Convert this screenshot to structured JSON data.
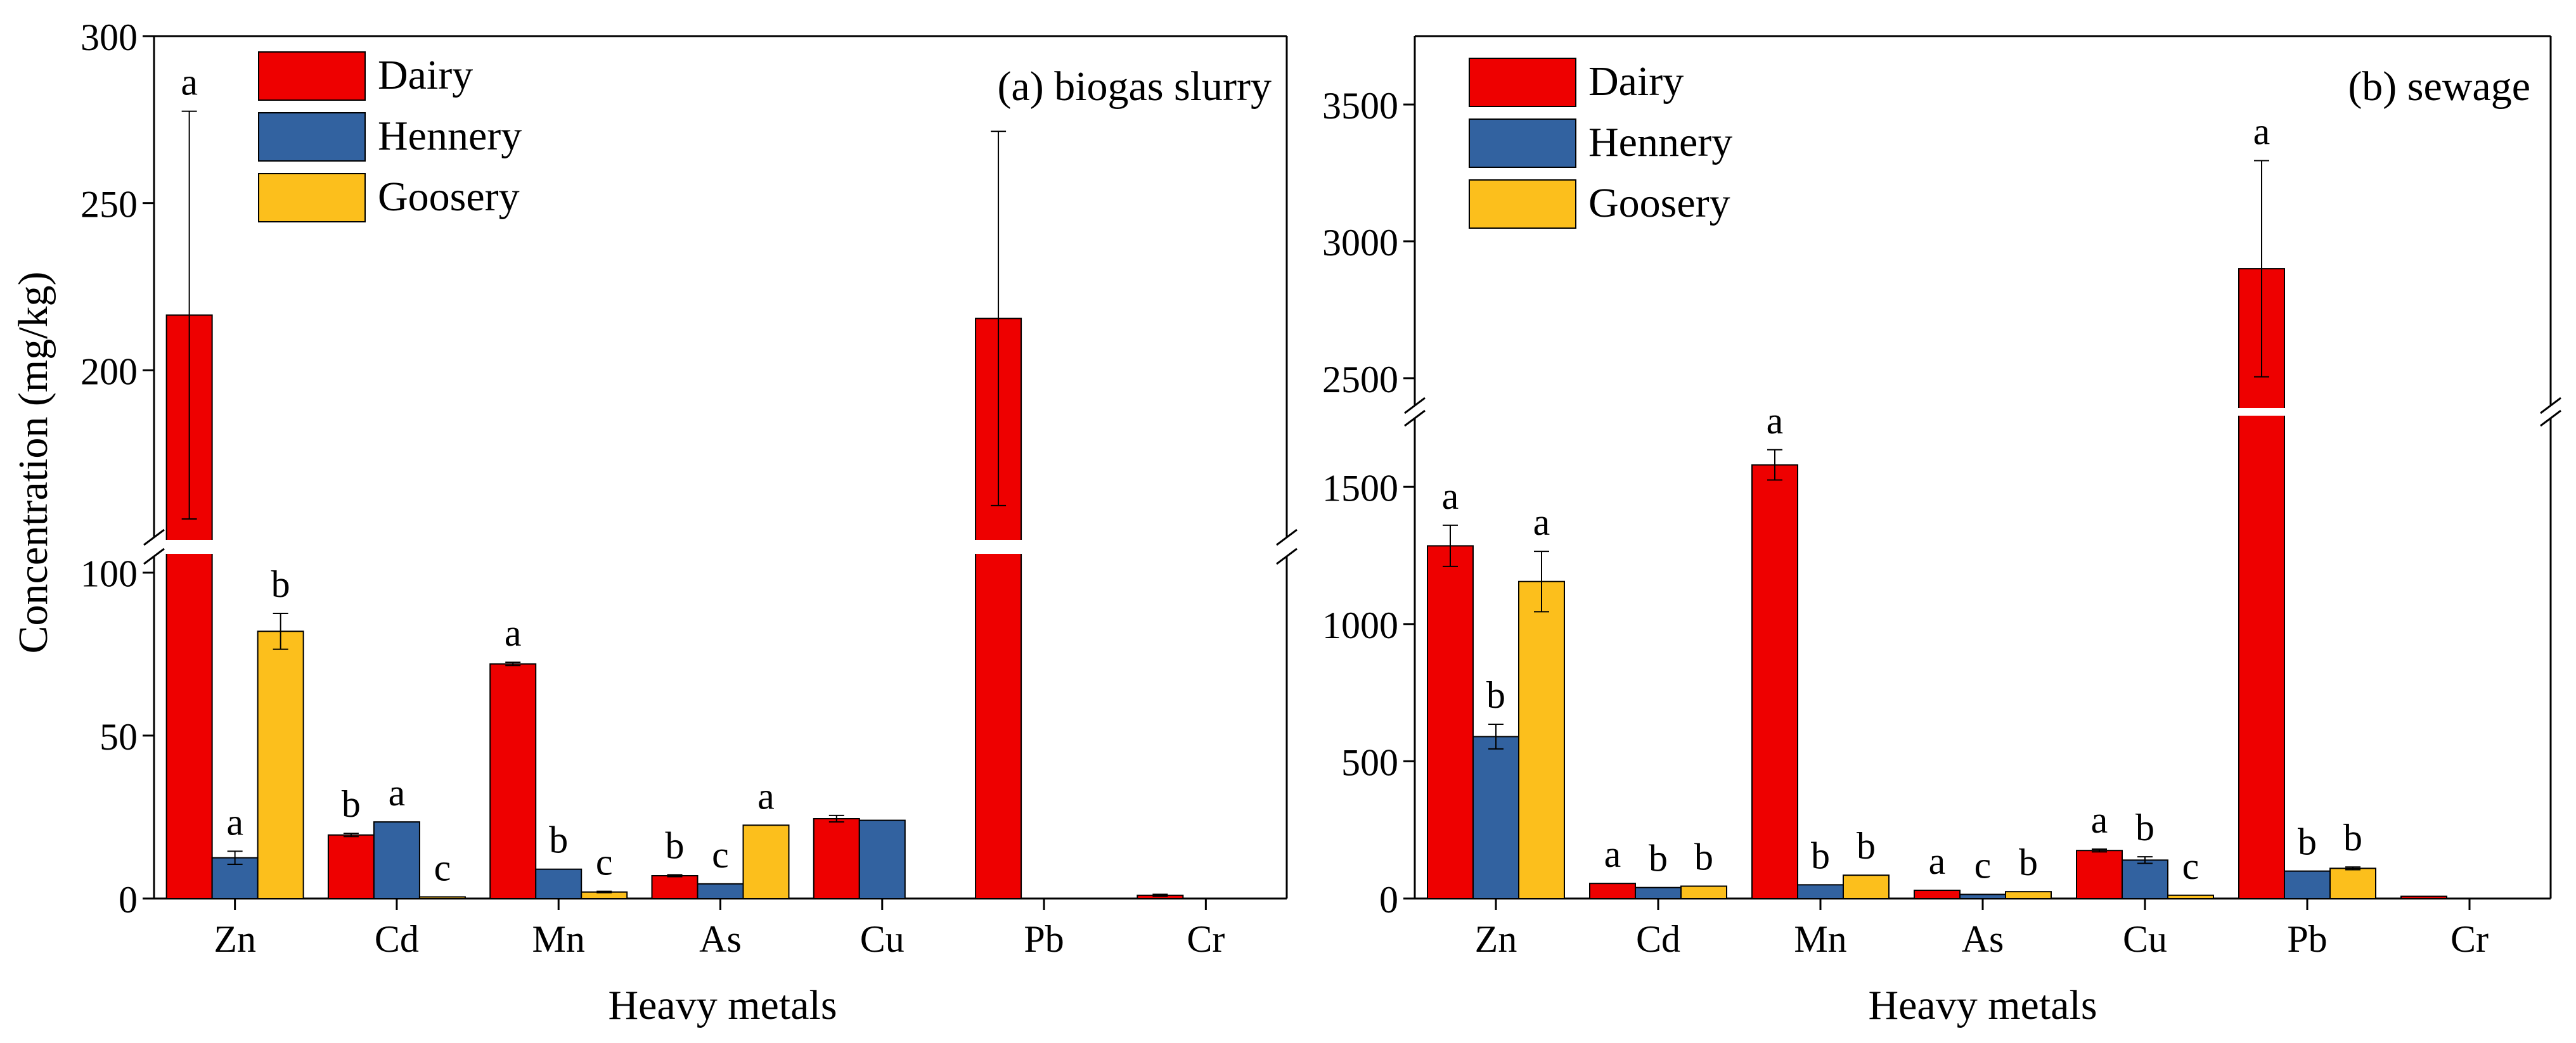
{
  "figure": {
    "ylabel": "Concentration (mg/kg)",
    "colors": {
      "Dairy": "#ee0000",
      "Hennery": "#3262a0",
      "Goosery": "#fcbf1c"
    }
  },
  "chart_data": [
    {
      "type": "bar",
      "panel_label": "(a) biogas slurry",
      "xlabel": "Heavy metals",
      "ylabel": "Concentration (mg/kg)",
      "axis_break": {
        "lower_range": [
          0,
          105
        ],
        "upper_range": [
          150,
          300
        ]
      },
      "yticks_lower": [
        0,
        50,
        100
      ],
      "yticks_upper": [
        200,
        250,
        300
      ],
      "categories": [
        "Zn",
        "Cd",
        "Mn",
        "As",
        "Cu",
        "Pb",
        "Cr"
      ],
      "legend": [
        "Dairy",
        "Hennery",
        "Goosery"
      ],
      "series": [
        {
          "name": "Dairy",
          "values": [
            216.5,
            19.5,
            72,
            7,
            24.5,
            215.5,
            1
          ],
          "errors": [
            61,
            0.5,
            0.5,
            0.3,
            1,
            56,
            0.3
          ],
          "letters": [
            "a",
            "b",
            "a",
            "b",
            "",
            "",
            ""
          ]
        },
        {
          "name": "Hennery",
          "values": [
            12.5,
            23.5,
            9,
            4.5,
            24,
            0,
            0
          ],
          "errors": [
            2,
            0,
            0,
            0,
            0,
            0,
            0
          ],
          "letters": [
            "a",
            "a",
            "b",
            "c",
            "",
            "",
            ""
          ]
        },
        {
          "name": "Goosery",
          "values": [
            82,
            0.5,
            2,
            22.5,
            0,
            0,
            0
          ],
          "errors": [
            5.5,
            0,
            0.2,
            0,
            0,
            0,
            0
          ],
          "letters": [
            "b",
            "c",
            "c",
            "a",
            "",
            "",
            ""
          ]
        }
      ]
    },
    {
      "type": "bar",
      "panel_label": "(b) sewage",
      "xlabel": "Heavy metals",
      "axis_break": {
        "lower_range": [
          0,
          1750
        ],
        "upper_range": [
          2400,
          3750
        ]
      },
      "yticks_lower": [
        0,
        500,
        1000,
        1500
      ],
      "yticks_upper": [
        2500,
        3000,
        3500
      ],
      "categories": [
        "Zn",
        "Cd",
        "Mn",
        "As",
        "Cu",
        "Pb",
        "Cr"
      ],
      "legend": [
        "Dairy",
        "Hennery",
        "Goosery"
      ],
      "series": [
        {
          "name": "Dairy",
          "values": [
            1285,
            55,
            1580,
            30,
            175,
            2900,
            8
          ],
          "errors": [
            75,
            0,
            55,
            0,
            5,
            395,
            0
          ],
          "letters": [
            "a",
            "a",
            "a",
            "a",
            "a",
            "a",
            ""
          ]
        },
        {
          "name": "Hennery",
          "values": [
            590,
            40,
            50,
            15,
            140,
            100,
            0
          ],
          "errors": [
            45,
            0,
            0,
            0,
            12,
            0,
            0
          ],
          "letters": [
            "b",
            "b",
            "b",
            "c",
            "b",
            "b",
            ""
          ]
        },
        {
          "name": "Goosery",
          "values": [
            1155,
            45,
            85,
            25,
            12,
            110,
            0
          ],
          "errors": [
            110,
            0,
            0,
            0,
            0,
            5,
            0
          ],
          "letters": [
            "a",
            "b",
            "b",
            "b",
            "c",
            "b",
            ""
          ]
        }
      ]
    }
  ]
}
